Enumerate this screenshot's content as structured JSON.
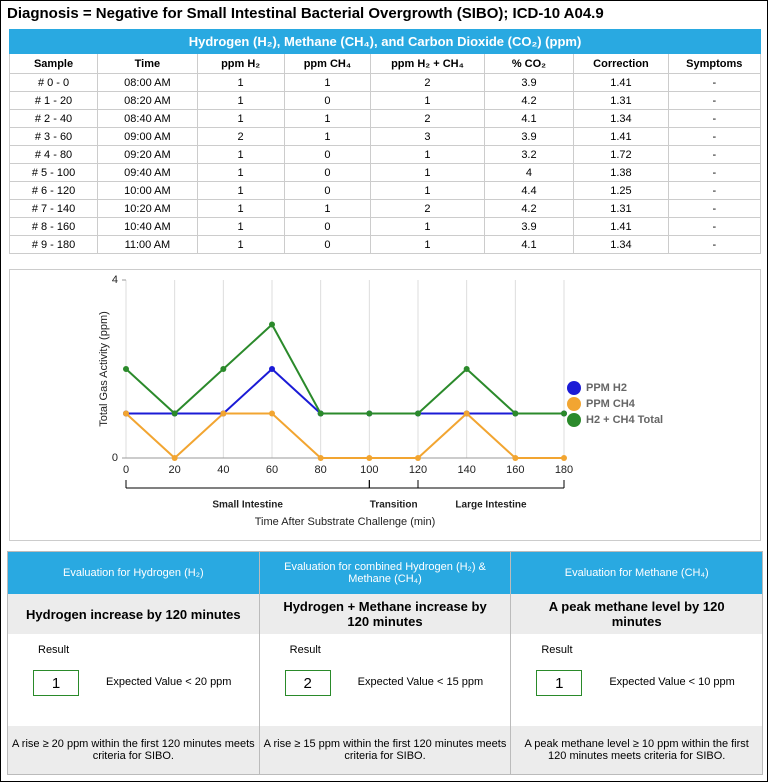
{
  "diagnosis": "Diagnosis = Negative for Small Intestinal Bacterial Overgrowth (SIBO); ICD-10 A04.9",
  "table": {
    "title": "Hydrogen (H₂), Methane (CH₄), and Carbon Dioxide (CO₂) (ppm)",
    "columns": [
      "Sample",
      "Time",
      "ppm H₂",
      "ppm CH₄",
      "ppm H₂ + CH₄",
      "% CO₂",
      "Correction",
      "Symptoms"
    ],
    "rows": [
      [
        "# 0 - 0",
        "08:00 AM",
        1,
        1,
        2,
        3.9,
        1.41,
        "-"
      ],
      [
        "# 1 - 20",
        "08:20 AM",
        1,
        0,
        1,
        4.2,
        1.31,
        "-"
      ],
      [
        "# 2 - 40",
        "08:40 AM",
        1,
        1,
        2,
        4.1,
        1.34,
        "-"
      ],
      [
        "# 3 - 60",
        "09:00 AM",
        2,
        1,
        3,
        3.9,
        1.41,
        "-"
      ],
      [
        "# 4 - 80",
        "09:20 AM",
        1,
        0,
        1,
        3.2,
        1.72,
        "-"
      ],
      [
        "# 5 - 100",
        "09:40 AM",
        1,
        0,
        1,
        4,
        1.38,
        "-"
      ],
      [
        "# 6 - 120",
        "10:00 AM",
        1,
        0,
        1,
        4.4,
        1.25,
        "-"
      ],
      [
        "# 7 - 140",
        "10:20 AM",
        1,
        1,
        2,
        4.2,
        1.31,
        "-"
      ],
      [
        "# 8 - 160",
        "10:40 AM",
        1,
        0,
        1,
        3.9,
        1.41,
        "-"
      ],
      [
        "# 9 - 180",
        "11:00 AM",
        1,
        0,
        1,
        4.1,
        1.34,
        "-"
      ]
    ]
  },
  "chart_data": {
    "type": "line",
    "x": [
      0,
      20,
      40,
      60,
      80,
      100,
      120,
      140,
      160,
      180
    ],
    "xlim": [
      0,
      180
    ],
    "xticks": [
      0,
      20,
      40,
      60,
      80,
      100,
      120,
      140,
      160,
      180
    ],
    "ylim": [
      0,
      4
    ],
    "yticks": [
      0,
      4
    ],
    "x_label": "Time After Substrate Challenge (min)",
    "y_label": "Total Gas Activity (ppm)",
    "grid": true,
    "legend": "right",
    "regions": [
      {
        "label": "Small Intestine",
        "from": 0,
        "to": 100
      },
      {
        "label": "Transition",
        "from": 100,
        "to": 120
      },
      {
        "label": "Large Intestine",
        "from": 120,
        "to": 180
      }
    ],
    "series": [
      {
        "name": "PPM H2",
        "color": "#1b1bd6",
        "values": [
          1,
          1,
          1,
          2,
          1,
          1,
          1,
          1,
          1,
          1
        ]
      },
      {
        "name": "PPM CH4",
        "color": "#f2a531",
        "values": [
          1,
          0,
          1,
          1,
          0,
          0,
          0,
          1,
          0,
          0
        ]
      },
      {
        "name": "H2 + CH4 Total",
        "color": "#2b8a2b",
        "values": [
          2,
          1,
          2,
          3,
          1,
          1,
          1,
          2,
          1,
          1
        ]
      }
    ]
  },
  "evaluations": [
    {
      "header": "Evaluation for Hydrogen (H₂)",
      "title": "Hydrogen increase by 120 minutes",
      "result_label": "Result",
      "result": 1,
      "expected": "Expected Value < 20 ppm",
      "note": "A rise ≥ 20 ppm within the first 120 minutes meets criteria for SIBO."
    },
    {
      "header": "Evaluation for combined Hydrogen (H₂) & Methane (CH₄)",
      "title": "Hydrogen + Methane increase by 120 minutes",
      "result_label": "Result",
      "result": 2,
      "expected": "Expected Value < 15 ppm",
      "note": "A rise ≥ 15 ppm within the first 120 minutes meets criteria for SIBO."
    },
    {
      "header": "Evaluation for Methane (CH₄)",
      "title": "A peak methane level by 120 minutes",
      "result_label": "Result",
      "result": 1,
      "expected": "Expected Value < 10 ppm",
      "note": "A peak methane level ≥ 10 ppm within the first 120 minutes meets criteria for SIBO."
    }
  ]
}
